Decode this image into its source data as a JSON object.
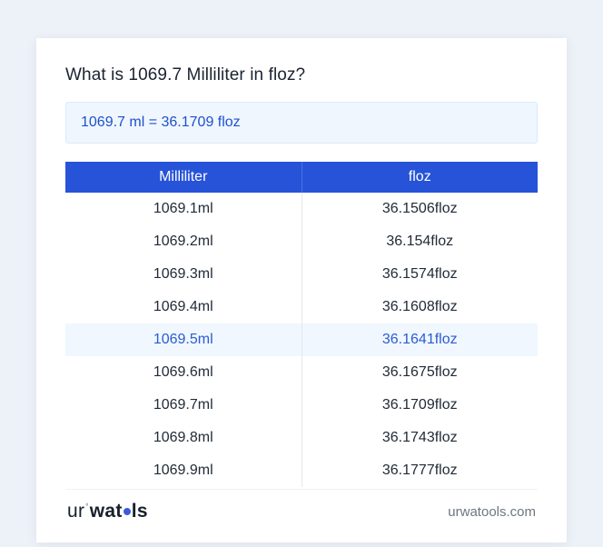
{
  "page": {
    "title": "What is 1069.7 Milliliter in floz?",
    "result_text": "1069.7 ml = 36.1709 floz"
  },
  "table": {
    "headers": [
      "Milliliter",
      "floz"
    ],
    "rows": [
      {
        "ml": "1069.1ml",
        "floz": "36.1506floz"
      },
      {
        "ml": "1069.2ml",
        "floz": "36.154floz"
      },
      {
        "ml": "1069.3ml",
        "floz": "36.1574floz"
      },
      {
        "ml": "1069.4ml",
        "floz": "36.1608floz"
      },
      {
        "ml": "1069.5ml",
        "floz": "36.1641floz"
      },
      {
        "ml": "1069.6ml",
        "floz": "36.1675floz"
      },
      {
        "ml": "1069.7ml",
        "floz": "36.1709floz"
      },
      {
        "ml": "1069.8ml",
        "floz": "36.1743floz"
      },
      {
        "ml": "1069.9ml",
        "floz": "36.1777floz"
      }
    ],
    "highlighted_row_index": 4
  },
  "footer": {
    "logo": {
      "part_ur": "ur",
      "part_sup": "°",
      "part_wat": "wat",
      "part_o": "o",
      "part_ls": "ls"
    },
    "site": "urwatools.com"
  },
  "colors": {
    "header_blue": "#2753d9",
    "highlight_row_bg": "#f0f7fe",
    "highlight_text": "#2b5cd2",
    "result_box_bg": "#eff6fe",
    "result_text": "#1d51cd",
    "page_bg": "#edf1f8",
    "logo_donut": "#3b5bdb"
  }
}
